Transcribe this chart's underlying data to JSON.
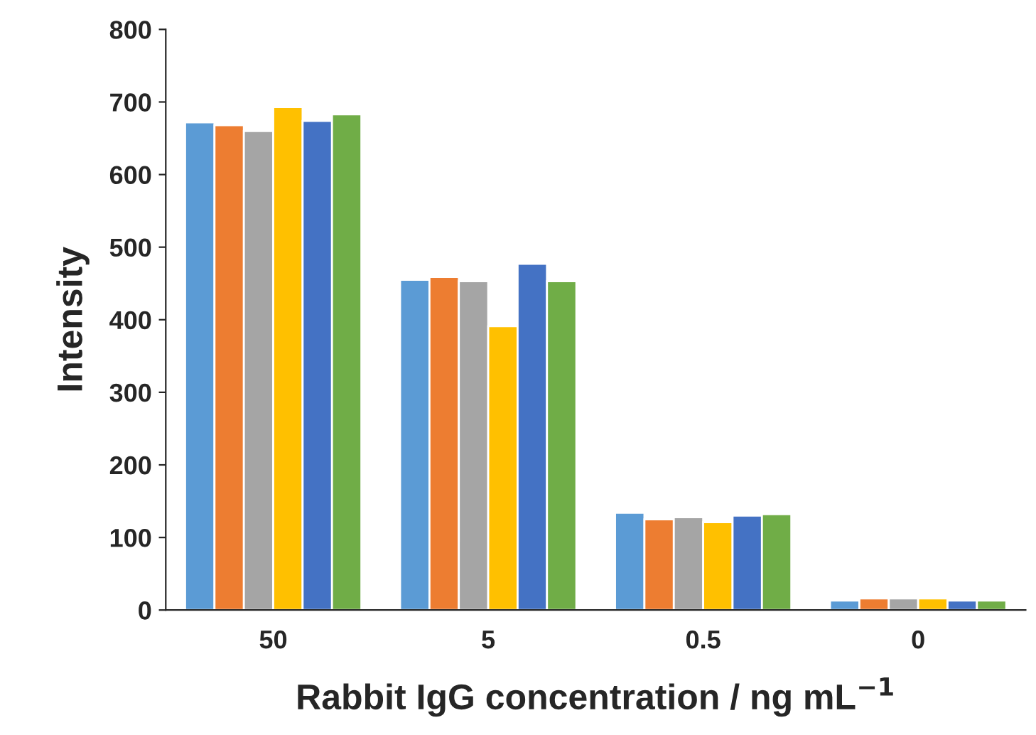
{
  "chart_data": {
    "type": "bar",
    "xlabel": "Rabbit IgG concentration / ng mL$^{−1}$",
    "ylabel": "Intensity",
    "categories": [
      "50",
      "5",
      "0.5",
      "0"
    ],
    "series": [
      {
        "color": "#5b9bd5",
        "values": [
          672,
          455,
          134,
          13
        ]
      },
      {
        "color": "#ed7d31",
        "values": [
          668,
          459,
          125,
          16
        ]
      },
      {
        "color": "#a5a5a5",
        "values": [
          660,
          453,
          128,
          16
        ]
      },
      {
        "color": "#ffc000",
        "values": [
          693,
          391,
          121,
          16
        ]
      },
      {
        "color": "#4472c4",
        "values": [
          674,
          477,
          130,
          13
        ]
      },
      {
        "color": "#70ad47",
        "values": [
          683,
          453,
          132,
          13
        ]
      }
    ],
    "ylim": [
      0,
      800
    ],
    "yticks": [
      0,
      100,
      200,
      300,
      400,
      500,
      600,
      700,
      800
    ],
    "grid": false,
    "legend": false
  }
}
